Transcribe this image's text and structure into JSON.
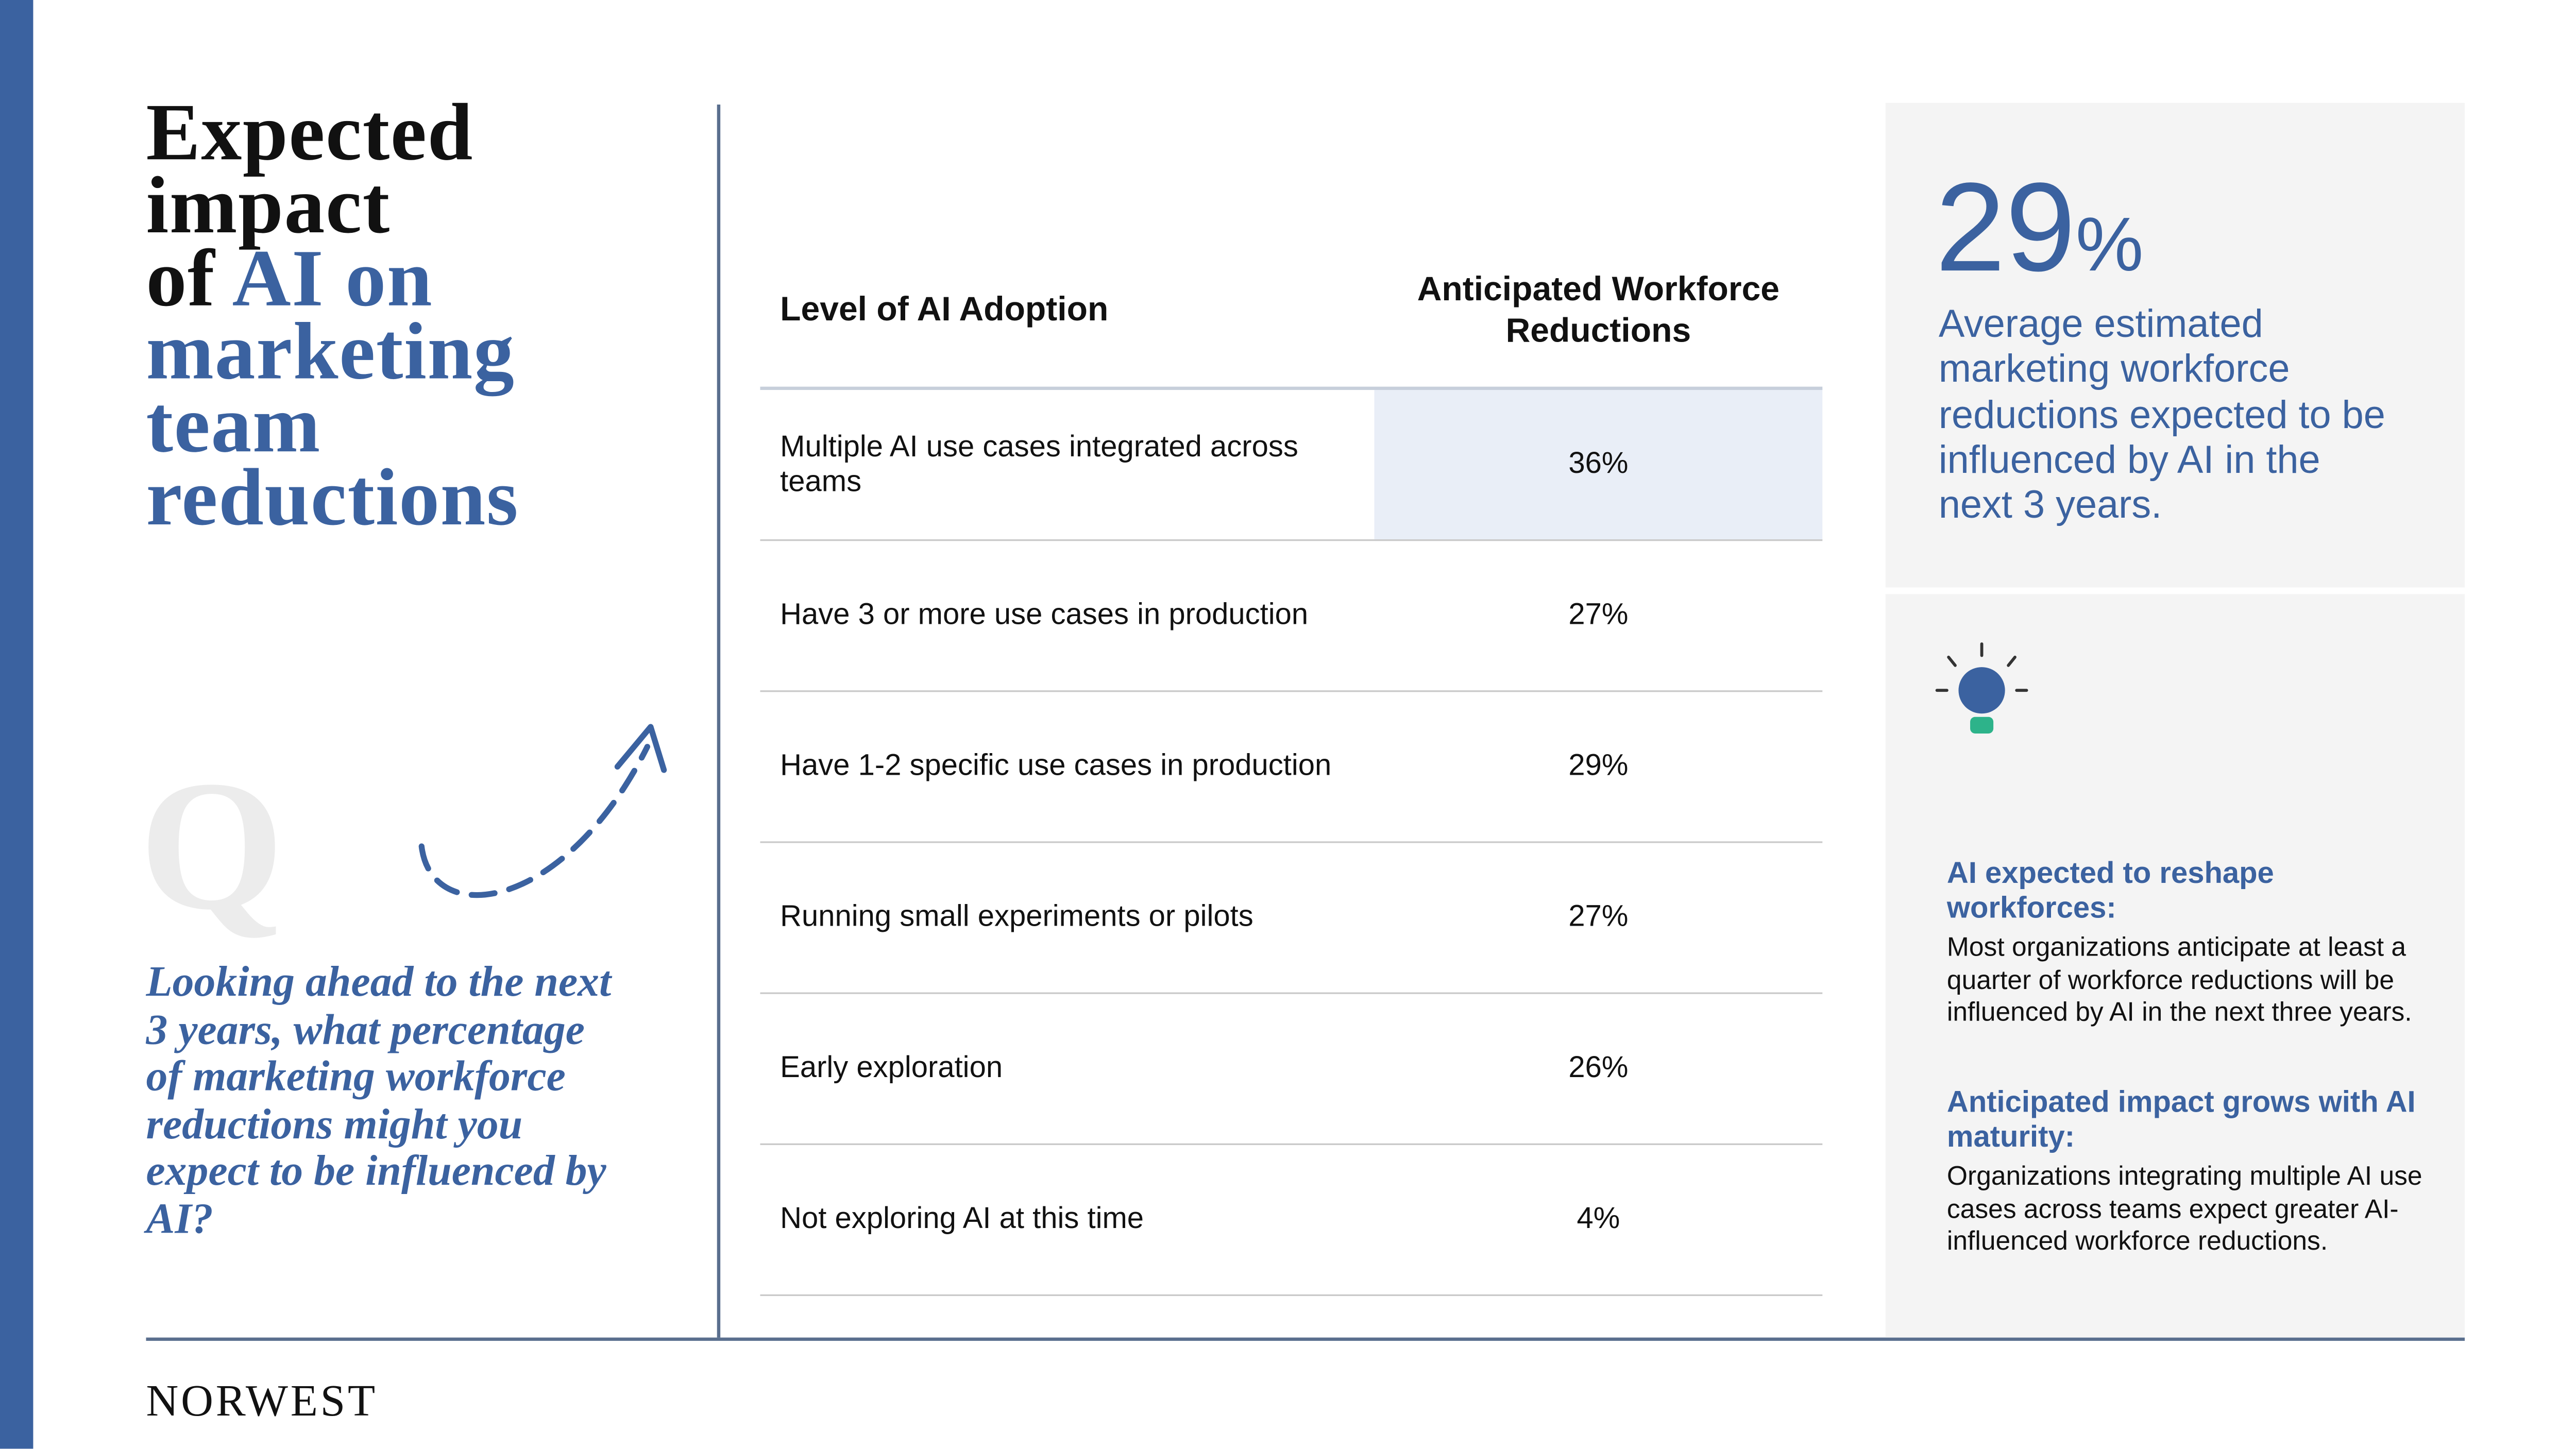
{
  "title": {
    "dark": [
      "Expected",
      "impact",
      "of"
    ],
    "accent": [
      "AI on",
      "marketing",
      "team",
      "reductions"
    ]
  },
  "q_mark": "Q",
  "question": "Looking ahead to the next 3 years, what percentage of marketing workforce reductions might you expect to be influenced by AI?",
  "table": {
    "headers": [
      "Level of AI Adoption",
      "Anticipated Workforce Reductions"
    ],
    "rows": [
      [
        "Multiple AI use cases integrated across teams",
        "36%"
      ],
      [
        "Have 3 or more use cases in production",
        "27%"
      ],
      [
        "Have 1-2 specific use cases in production",
        "29%"
      ],
      [
        "Running small experiments or pilots",
        "27%"
      ],
      [
        "Early exploration",
        "26%"
      ],
      [
        "Not exploring AI at this time",
        "4%"
      ]
    ]
  },
  "stat": {
    "number": "29",
    "unit": "%",
    "caption": "Average estimated marketing workforce reductions expected to be influenced by AI in the next 3 years."
  },
  "insights": [
    {
      "heading": "AI expected to reshape workforces:",
      "body": "Most organizations anticipate at least a quarter of workforce reductions will be influenced by AI in the next three years."
    },
    {
      "heading": "Anticipated impact grows with AI maturity:",
      "body": "Organizations integrating multiple AI use cases across teams expect greater AI-influenced workforce reductions."
    }
  ],
  "footer": {
    "brand": "NORWEST"
  }
}
